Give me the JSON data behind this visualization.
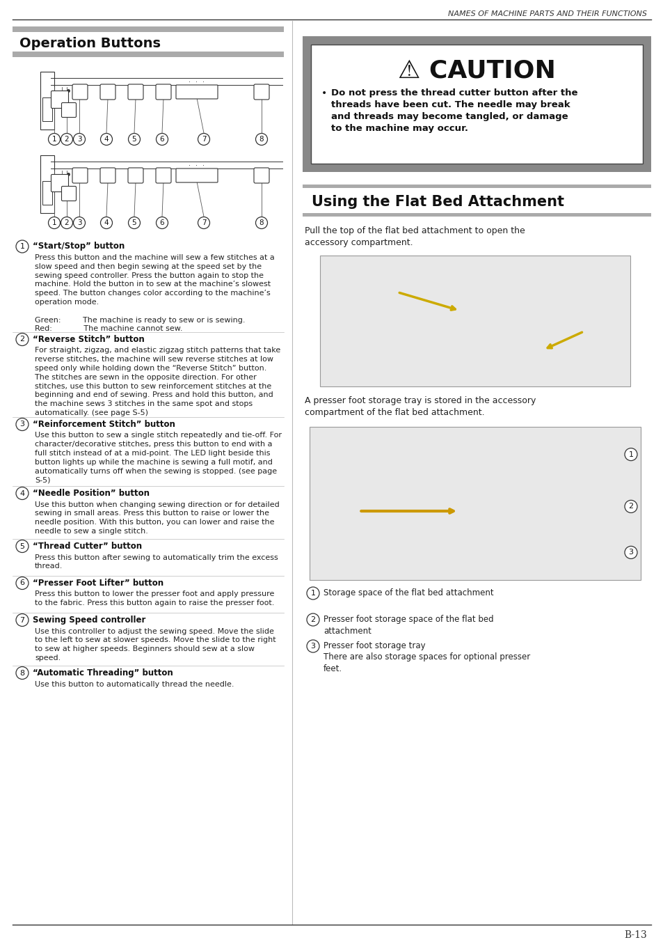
{
  "page_title": "NAMES OF MACHINE PARTS AND THEIR FUNCTIONS",
  "page_number": "B-13",
  "left_section_title": "Operation Buttons",
  "caution_title": "⚠ CAUTION",
  "flat_bed_title": "Using the Flat Bed Attachment",
  "flat_bed_intro": "Pull the top of the flat bed attachment to open the\naccessory compartment.",
  "flat_bed_note": "A presser foot storage tray is stored in the accessory\ncompartment of the flat bed attachment.",
  "flat_bed_labels": [
    "Storage space of the flat bed attachment",
    "Presser foot storage space of the flat bed\nattachment",
    "Presser foot storage tray\nThere are also storage spaces for optional presser\nfeet."
  ],
  "items": [
    {
      "num": "1",
      "title": "“Start/Stop” button",
      "body": "Press this button and the machine will sew a few stitches at a\nslow speed and then begin sewing at the speed set by the\nsewing speed controller. Press the button again to stop the\nmachine. Hold the button in to sew at the machine’s slowest\nspeed. The button changes color according to the machine’s\noperation mode.\n\nGreen:         The machine is ready to sew or is sewing.\nRed:             The machine cannot sew."
    },
    {
      "num": "2",
      "title": "“Reverse Stitch” button",
      "body": "For straight, zigzag, and elastic zigzag stitch patterns that take\nreverse stitches, the machine will sew reverse stitches at low\nspeed only while holding down the “Reverse Stitch” button.\nThe stitches are sewn in the opposite direction. For other\nstitches, use this button to sew reinforcement stitches at the\nbeginning and end of sewing. Press and hold this button, and\nthe machine sews 3 stitches in the same spot and stops\nautomatically. (see page S-5)"
    },
    {
      "num": "3",
      "title": "“Reinforcement Stitch” button",
      "body": "Use this button to sew a single stitch repeatedly and tie-off. For\ncharacter/decorative stitches, press this button to end with a\nfull stitch instead of at a mid-point. The LED light beside this\nbutton lights up while the machine is sewing a full motif, and\nautomatically turns off when the sewing is stopped. (see page\nS-5)"
    },
    {
      "num": "4",
      "title": "“Needle Position” button",
      "body": "Use this button when changing sewing direction or for detailed\nsewing in small areas. Press this button to raise or lower the\nneedle position. With this button, you can lower and raise the\nneedle to sew a single stitch."
    },
    {
      "num": "5",
      "title": "“Thread Cutter” button",
      "body": "Press this button after sewing to automatically trim the excess\nthread."
    },
    {
      "num": "6",
      "title": "“Presser Foot Lifter” button",
      "body": "Press this button to lower the presser foot and apply pressure\nto the fabric. Press this button again to raise the presser foot."
    },
    {
      "num": "7",
      "title": "Sewing Speed controller",
      "body": "Use this controller to adjust the sewing speed. Move the slide\nto the left to sew at slower speeds. Move the slide to the right\nto sew at higher speeds. Beginners should sew at a slow\nspeed."
    },
    {
      "num": "8",
      "title": "“Automatic Threading” button",
      "body": "Use this button to automatically thread the needle."
    }
  ],
  "bg_color": "#ffffff",
  "text_color": "#1a1a1a",
  "gray_dark": "#555555",
  "gray_mid": "#888888",
  "gray_light": "#bbbbbb",
  "gray_header": "#999999"
}
